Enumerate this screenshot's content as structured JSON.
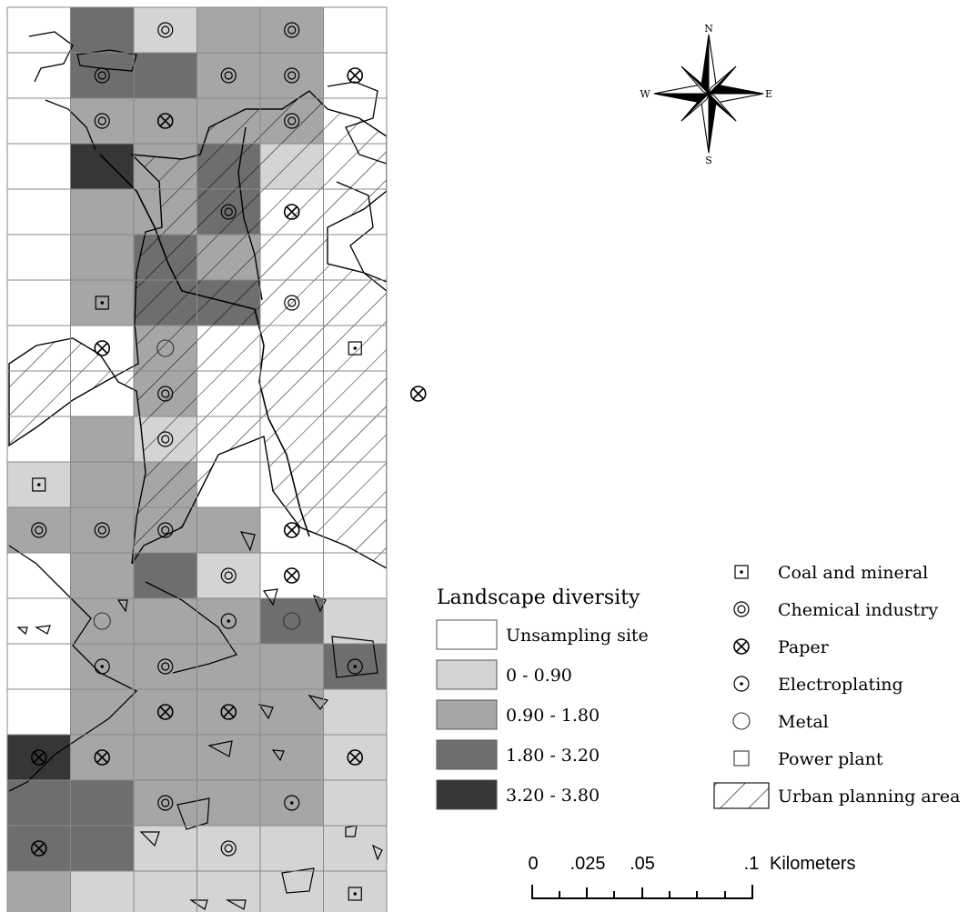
{
  "legend": {
    "title": "Landscape diversity",
    "classes": [
      {
        "label": "Unsampling site",
        "color": "#ffffff"
      },
      {
        "label": "0 - 0.90",
        "color": "#d4d4d4"
      },
      {
        "label": "0.90 - 1.80",
        "color": "#a6a6a6"
      },
      {
        "label": "1.80 - 3.20",
        "color": "#6e6e6e"
      },
      {
        "label": "3.20 - 3.80",
        "color": "#363636"
      }
    ]
  },
  "symbols": [
    {
      "icon": "coal-mineral-icon",
      "label": "Coal and mineral"
    },
    {
      "icon": "chemical-industry-icon",
      "label": "Chemical industry"
    },
    {
      "icon": "paper-icon",
      "label": "Paper"
    },
    {
      "icon": "electroplating-icon",
      "label": "Electroplating"
    },
    {
      "icon": "metal-icon",
      "label": "Metal"
    },
    {
      "icon": "power-plant-icon",
      "label": "Power plant"
    },
    {
      "icon": "urban-planning-icon",
      "label": "Urban planning area"
    }
  ],
  "compass": {
    "n": "N",
    "s": "S",
    "e": "E",
    "w": "W"
  },
  "scale_bar": {
    "ticks": [
      "0",
      ".025",
      ".05",
      ".1"
    ],
    "unit": "Kilometers"
  },
  "grid_classes": [
    [
      0,
      3,
      1,
      2,
      2,
      0
    ],
    [
      0,
      3,
      3,
      2,
      2,
      0
    ],
    [
      0,
      2,
      2,
      2,
      2,
      0
    ],
    [
      0,
      4,
      2,
      3,
      1,
      0
    ],
    [
      0,
      2,
      2,
      3,
      0,
      0
    ],
    [
      0,
      2,
      3,
      2,
      0,
      0
    ],
    [
      0,
      2,
      3,
      3,
      0,
      0
    ],
    [
      0,
      0,
      2,
      0,
      0,
      0
    ],
    [
      0,
      0,
      2,
      0,
      0,
      0
    ],
    [
      0,
      2,
      1,
      0,
      0,
      0
    ],
    [
      1,
      2,
      2,
      0,
      0,
      0
    ],
    [
      2,
      2,
      2,
      2,
      0,
      0
    ],
    [
      0,
      2,
      3,
      1,
      0,
      0
    ],
    [
      0,
      2,
      2,
      2,
      3,
      1
    ],
    [
      0,
      2,
      2,
      2,
      2,
      3
    ],
    [
      0,
      2,
      2,
      2,
      2,
      1
    ],
    [
      4,
      2,
      2,
      2,
      2,
      1
    ],
    [
      3,
      3,
      2,
      2,
      2,
      1
    ],
    [
      3,
      3,
      1,
      1,
      1,
      1
    ],
    [
      2,
      1,
      1,
      1,
      1,
      1
    ]
  ],
  "markers": [
    {
      "t": "chem",
      "c": 2,
      "r": 0
    },
    {
      "t": "chem",
      "c": 4,
      "r": 0
    },
    {
      "t": "chem",
      "c": 1,
      "r": 1
    },
    {
      "t": "chem",
      "c": 3,
      "r": 1
    },
    {
      "t": "chem",
      "c": 4,
      "r": 1
    },
    {
      "t": "paper",
      "c": 5,
      "r": 1
    },
    {
      "t": "chem",
      "c": 1,
      "r": 2
    },
    {
      "t": "paper",
      "c": 2,
      "r": 2
    },
    {
      "t": "chem",
      "c": 4,
      "r": 2
    },
    {
      "t": "chem",
      "c": 3,
      "r": 4
    },
    {
      "t": "paper",
      "c": 4,
      "r": 4
    },
    {
      "t": "coal",
      "c": 1,
      "r": 6
    },
    {
      "t": "chem",
      "c": 4,
      "r": 6
    },
    {
      "t": "paper",
      "c": 1,
      "r": 7
    },
    {
      "t": "metal",
      "c": 2,
      "r": 7
    },
    {
      "t": "coal",
      "c": 5,
      "r": 7
    },
    {
      "t": "chem",
      "c": 2,
      "r": 8
    },
    {
      "t": "paper",
      "c": 6,
      "r": 8
    },
    {
      "t": "chem",
      "c": 2,
      "r": 9
    },
    {
      "t": "coal",
      "c": 0,
      "r": 10
    },
    {
      "t": "chem",
      "c": 0,
      "r": 11
    },
    {
      "t": "chem",
      "c": 1,
      "r": 11
    },
    {
      "t": "chem",
      "c": 2,
      "r": 11
    },
    {
      "t": "paper",
      "c": 4,
      "r": 11
    },
    {
      "t": "chem",
      "c": 3,
      "r": 12
    },
    {
      "t": "paper",
      "c": 4,
      "r": 12
    },
    {
      "t": "metal",
      "c": 1,
      "r": 13
    },
    {
      "t": "elec",
      "c": 3,
      "r": 13
    },
    {
      "t": "metal",
      "c": 4,
      "r": 13
    },
    {
      "t": "elec",
      "c": 1,
      "r": 14
    },
    {
      "t": "chem",
      "c": 2,
      "r": 14
    },
    {
      "t": "elec",
      "c": 5,
      "r": 14
    },
    {
      "t": "paper",
      "c": 2,
      "r": 15
    },
    {
      "t": "paper",
      "c": 3,
      "r": 15
    },
    {
      "t": "paper",
      "c": 0,
      "r": 16
    },
    {
      "t": "paper",
      "c": 1,
      "r": 16
    },
    {
      "t": "paper",
      "c": 5,
      "r": 16
    },
    {
      "t": "chem",
      "c": 2,
      "r": 17
    },
    {
      "t": "elec",
      "c": 4,
      "r": 17
    },
    {
      "t": "paper",
      "c": 0,
      "r": 18
    },
    {
      "t": "chem",
      "c": 3,
      "r": 18
    },
    {
      "t": "coal",
      "c": 5,
      "r": 19
    }
  ]
}
